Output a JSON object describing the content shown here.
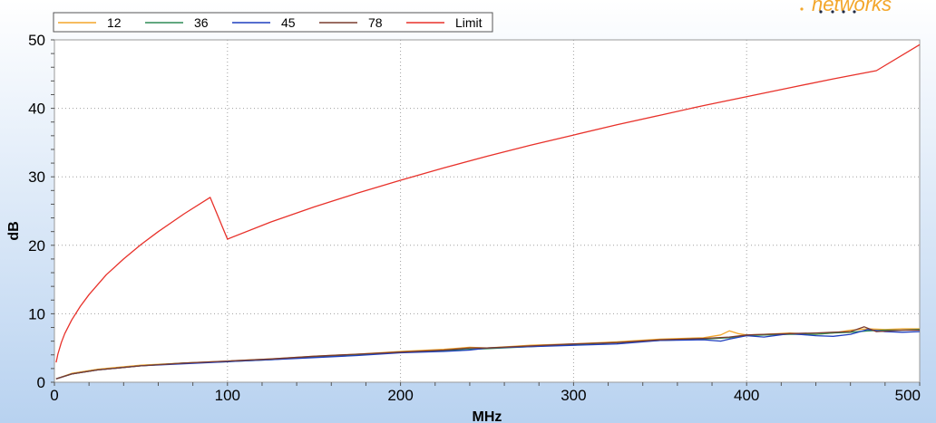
{
  "chart_data": {
    "type": "line",
    "title": "",
    "xlabel": "MHz",
    "ylabel": "dB",
    "xlim": [
      0,
      500
    ],
    "ylim": [
      0,
      50
    ],
    "x_ticks": [
      0,
      100,
      200,
      300,
      400,
      500
    ],
    "y_ticks": [
      0,
      10,
      20,
      30,
      40,
      50
    ],
    "grid": true,
    "legend_position": "top-left",
    "background": {
      "top": "#ffffff",
      "bottom": "#b8d2f0"
    },
    "series": [
      {
        "name": "12",
        "color": "#f3a62a",
        "x": [
          1,
          10,
          25,
          50,
          75,
          100,
          125,
          150,
          175,
          200,
          225,
          240,
          250,
          275,
          300,
          325,
          350,
          375,
          385,
          390,
          395,
          400,
          410,
          425,
          440,
          450,
          460,
          470,
          480,
          490,
          500
        ],
        "y": [
          0.5,
          1.3,
          1.9,
          2.5,
          2.8,
          3.1,
          3.4,
          3.8,
          4.1,
          4.5,
          4.8,
          5.1,
          5.0,
          5.4,
          5.6,
          5.9,
          6.3,
          6.5,
          6.9,
          7.5,
          7.1,
          6.9,
          7.0,
          7.2,
          7.0,
          7.2,
          7.6,
          7.8,
          7.7,
          7.8,
          7.8
        ]
      },
      {
        "name": "36",
        "color": "#2e8b57",
        "x": [
          1,
          10,
          25,
          50,
          75,
          100,
          125,
          150,
          175,
          200,
          225,
          240,
          250,
          275,
          300,
          325,
          350,
          375,
          390,
          400,
          410,
          425,
          440,
          450,
          460,
          470,
          480,
          490,
          500
        ],
        "y": [
          0.5,
          1.2,
          1.8,
          2.4,
          2.8,
          3.0,
          3.3,
          3.7,
          4.0,
          4.4,
          4.6,
          4.8,
          4.9,
          5.2,
          5.5,
          5.8,
          6.1,
          6.3,
          6.5,
          6.8,
          6.9,
          7.0,
          7.0,
          7.2,
          7.3,
          7.5,
          7.6,
          7.6,
          7.7
        ]
      },
      {
        "name": "45",
        "color": "#1f3fbf",
        "x": [
          1,
          10,
          25,
          50,
          75,
          100,
          125,
          150,
          175,
          200,
          225,
          240,
          250,
          275,
          300,
          325,
          350,
          375,
          385,
          390,
          400,
          410,
          425,
          440,
          450,
          460,
          470,
          480,
          490,
          500
        ],
        "y": [
          0.5,
          1.2,
          1.8,
          2.4,
          2.7,
          3.0,
          3.3,
          3.6,
          3.9,
          4.3,
          4.5,
          4.7,
          5.0,
          5.2,
          5.4,
          5.6,
          6.1,
          6.2,
          6.0,
          6.3,
          6.8,
          6.6,
          7.1,
          6.8,
          6.7,
          7.0,
          7.7,
          7.4,
          7.3,
          7.4
        ]
      },
      {
        "name": "78",
        "color": "#7a3b2e",
        "x": [
          1,
          10,
          25,
          50,
          75,
          100,
          125,
          150,
          175,
          200,
          225,
          240,
          250,
          275,
          300,
          325,
          350,
          375,
          390,
          400,
          410,
          425,
          440,
          450,
          460,
          468,
          475,
          490,
          500
        ],
        "y": [
          0.5,
          1.2,
          1.8,
          2.4,
          2.8,
          3.1,
          3.4,
          3.8,
          4.1,
          4.4,
          4.7,
          5.0,
          5.0,
          5.3,
          5.6,
          5.8,
          6.2,
          6.4,
          6.6,
          6.9,
          7.0,
          7.1,
          7.2,
          7.3,
          7.4,
          8.1,
          7.4,
          7.6,
          7.6
        ]
      },
      {
        "name": "Limit",
        "color": "#e8312a",
        "x": [
          1,
          2,
          4,
          6,
          10,
          15,
          20,
          30,
          40,
          50,
          60,
          75,
          90,
          100,
          125,
          150,
          175,
          200,
          225,
          250,
          275,
          300,
          325,
          350,
          375,
          400,
          425,
          450,
          475,
          500
        ],
        "y": [
          2.9,
          4.1,
          5.8,
          7.1,
          9.1,
          11.1,
          12.8,
          15.7,
          18.0,
          20.1,
          22.0,
          24.6,
          27.0,
          20.9,
          23.4,
          25.6,
          27.6,
          29.5,
          31.3,
          33.0,
          34.6,
          36.1,
          37.6,
          39.0,
          40.4,
          41.7,
          43.0,
          44.3,
          45.5,
          49.3
        ]
      }
    ]
  }
}
